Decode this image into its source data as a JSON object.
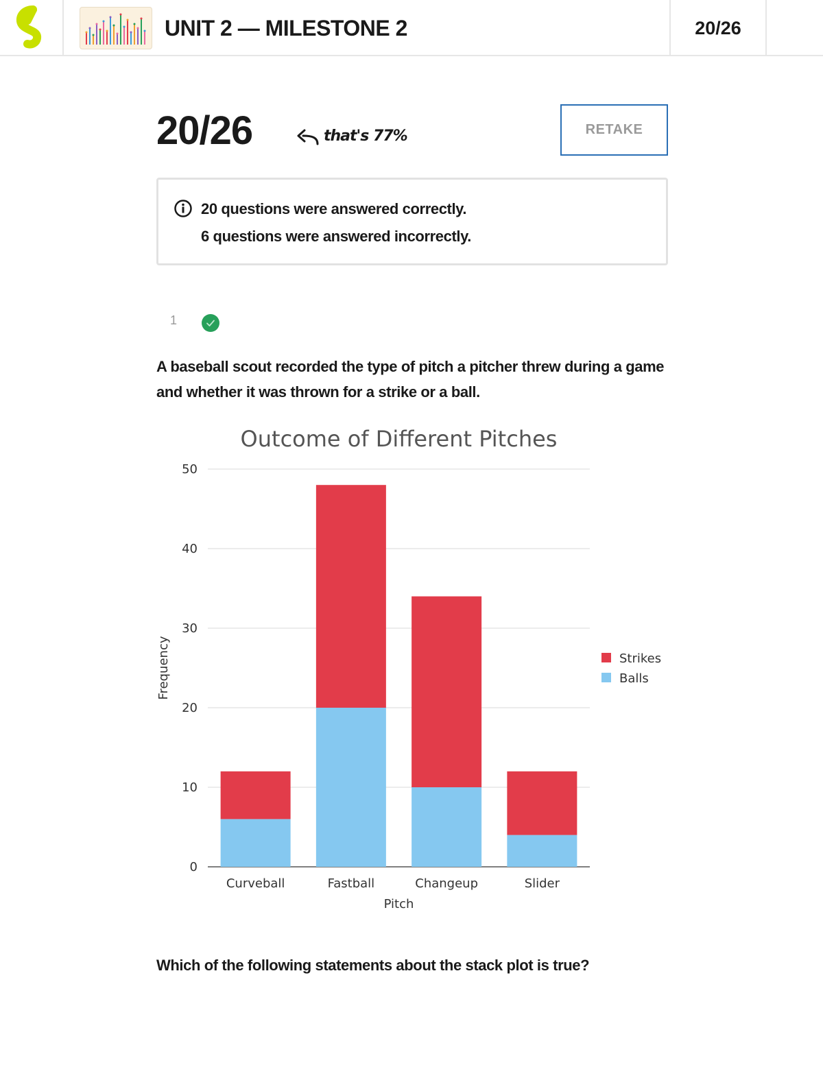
{
  "header": {
    "title": "UNIT 2 — MILESTONE 2",
    "score": "20/26"
  },
  "result": {
    "score": "20/26",
    "percent_note": "that's 77%",
    "retake_label": "RETAKE"
  },
  "info": {
    "line1": "20 questions were answered correctly.",
    "line2": "6 questions were answered incorrectly."
  },
  "question": {
    "number": "1",
    "text": "A baseball scout recorded the type of pitch a pitcher threw during a game and whether it was thrown for a strike or a ball.",
    "prompt": "Which of the following statements about the stack plot is true?"
  },
  "colors": {
    "strikes": "#e23c4a",
    "balls": "#85c8f0",
    "correct": "#27a05a",
    "accent": "#2a6fb5",
    "logo": "#c8e000"
  },
  "chart_data": {
    "type": "bar",
    "stacked": true,
    "title": "Outcome of Different Pitches",
    "xlabel": "Pitch",
    "ylabel": "Frequency",
    "categories": [
      "Curveball",
      "Fastball",
      "Changeup",
      "Slider"
    ],
    "series": [
      {
        "name": "Balls",
        "values": [
          6,
          20,
          10,
          4
        ]
      },
      {
        "name": "Strikes",
        "values": [
          6,
          28,
          24,
          8
        ]
      }
    ],
    "ylim": [
      0,
      50
    ],
    "yticks": [
      0,
      10,
      20,
      30,
      40,
      50
    ],
    "legend": [
      "Strikes",
      "Balls"
    ],
    "legend_position": "right",
    "grid": true
  }
}
